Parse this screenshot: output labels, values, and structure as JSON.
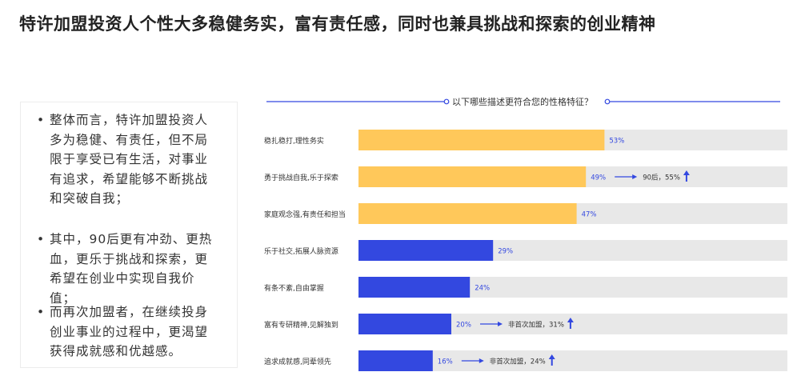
{
  "title": "特许加盟投资人个性大多稳健务实，富有责任感，同时也兼具挑战和探索的创业精神",
  "summary": {
    "bullets": [
      "整体而言，特许加盟投资人多为稳健、有责任，但不局限于享受已有生活，对事业有追求，希望能够不断挑战和突破自我；",
      "其中，90后更有冲劲、更热血，更乐于挑战和探索，更希望在创业中实现自我价值；",
      "而再次加盟者，在继续投身创业事业的过程中，更渴望获得成就感和优越感。"
    ]
  },
  "chart_data": {
    "type": "bar",
    "orientation": "horizontal",
    "title": "以下哪些描述更符合您的性格特征？",
    "unit": "%",
    "xlim": [
      0,
      100
    ],
    "categories": [
      "稳扎稳打,理性务实",
      "勇于挑战自我,乐于探索",
      "家庭观念强,有责任和担当",
      "乐于社交,拓展人脉资源",
      "有条不紊,自由掌握",
      "富有专研精神,见解独到",
      "追求成就感,同辈领先"
    ],
    "values": [
      53,
      49,
      47,
      29,
      24,
      20,
      16
    ],
    "labels": [
      "53%",
      "49%",
      "47%",
      "29%",
      "24%",
      "20%",
      "16%"
    ],
    "bar_colors": [
      "#ffc85a",
      "#ffc85a",
      "#ffc85a",
      "#3348e0",
      "#3348e0",
      "#3348e0",
      "#3348e0"
    ],
    "label_colors": [
      "#3348e0",
      "#3348e0",
      "#3348e0",
      "#ffffff",
      "#ffffff",
      "#3348e0",
      "#3348e0"
    ],
    "track_color": "#e8e8e8",
    "annotations": [
      {
        "category_index": 1,
        "text": "90后，55%"
      },
      {
        "category_index": 5,
        "text": "非首次加盟，31%"
      },
      {
        "category_index": 6,
        "text": "非首次加盟，24%"
      }
    ]
  },
  "colors": {
    "accent": "#3348e0",
    "highlight": "#ffc85a"
  }
}
